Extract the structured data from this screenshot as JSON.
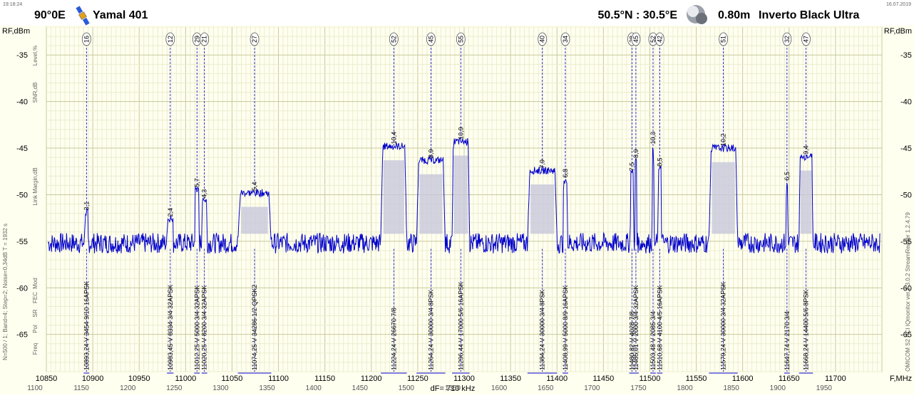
{
  "header": {
    "time": "19:18:24",
    "date": "16.07.2019",
    "orbit": "90°0E",
    "satellite": "Yamal 401",
    "location": "50.5°N : 30.5°E",
    "dish": "0.80m",
    "lnb": "Inverto Black Ultra",
    "satellite_icon": "satellite-icon",
    "globe_icon": "globe-icon"
  },
  "axes": {
    "left_unit": "RF,dBm",
    "right_unit": "RF,dBm",
    "x_unit": "F,MHz",
    "df_label": "dF= 710 kHz",
    "left_side_labels": [
      "Level,%",
      "SNR,dB",
      "Link Margin,dB",
      "Mod",
      "FEC",
      "SR",
      "Pol",
      "Freq"
    ],
    "left_status": "N=500 / 1; Band=4; Step=2; Noise=0,34dB  T = 1932 s",
    "right_status": "OMICOM S2 PCI  IQmonitor ver.2.3.0.2  StreamReader 1.2.4.79",
    "colors": {
      "trace": "#0000cc",
      "fill": "#c8c8dc",
      "grid": "#d8d8b0",
      "background": "#fffff0"
    }
  },
  "chart_data": {
    "type": "line",
    "xlim": [
      10850,
      11750
    ],
    "ylim": [
      -69,
      -32
    ],
    "grid": true,
    "x_ticks": [
      10850,
      10900,
      10950,
      11000,
      11050,
      11100,
      11150,
      11200,
      11250,
      11300,
      11350,
      11400,
      11450,
      11500,
      11550,
      11600,
      11650,
      11700
    ],
    "x_tick_labels": [
      "10850",
      "10900",
      "10950",
      "11000",
      "11050",
      "11100",
      "11150",
      "11200",
      "11250",
      "11300",
      "11350",
      "11400",
      "11450",
      "11500",
      "11550",
      "11600",
      "11650",
      "11700"
    ],
    "if_tick_labels": [
      "1100",
      "1150",
      "1200",
      "1250",
      "1300",
      "1350",
      "1400",
      "1450",
      "1500",
      "1550",
      "1600",
      "1650",
      "1700",
      "1750",
      "1800",
      "1850",
      "1900",
      "1950"
    ],
    "y_ticks": [
      -35,
      -40,
      -45,
      -50,
      -55,
      -60,
      -65
    ],
    "y_tick_labels": [
      "-35",
      "-40",
      "-45",
      "-50",
      "-55",
      "-60",
      "-65"
    ],
    "noise_floor": -55.2,
    "carriers": [
      {
        "num": "16",
        "freq": 10893.24,
        "level": -51.9,
        "snr": "3,1",
        "bw": 4,
        "tp": "10893,24  V  3454 9/10 16APSK"
      },
      {
        "num": "12",
        "freq": 10983.45,
        "level": -52.6,
        "snr": "2,4",
        "bw": 7,
        "tp": "10983,45  V  8334 3/4 32APSK"
      },
      {
        "num": "29",
        "freq": 11012.25,
        "level": -49.4,
        "snr": "5,7",
        "bw": 5,
        "tp": "11012,25  V  5000 3/4 32APSK"
      },
      {
        "num": "21",
        "freq": 11020.25,
        "level": -50.6,
        "snr": "4,3",
        "bw": 6,
        "tp": "11020,25  V  8200 3/4 32APSK"
      },
      {
        "num": "27",
        "freq": 11074.25,
        "level": -49.8,
        "snr": "5,4",
        "bw": 36,
        "tp": "11074,25  V  34286 1/2  QPSK2"
      },
      {
        "num": "52",
        "freq": 11224.24,
        "level": -44.8,
        "snr": "10,4",
        "bw": 28,
        "tp": "11224,24  V  26670 7/8"
      },
      {
        "num": "45",
        "freq": 11264.24,
        "level": -46.3,
        "snr": "8,9",
        "bw": 31,
        "tp": "11264,24  V  30000 3/4  8PSK"
      },
      {
        "num": "55",
        "freq": 11296.44,
        "level": -44.3,
        "snr": "10,9",
        "bw": 19,
        "tp": "11296,44  V  17000 5/6 16APSK"
      },
      {
        "num": "40",
        "freq": 11384.24,
        "level": -47.4,
        "snr": "7,9",
        "bw": 32,
        "tp": "11384,24  V  30000 3/4  8PSK"
      },
      {
        "num": "34",
        "freq": 11408.99,
        "level": -48.4,
        "snr": "6,8",
        "bw": 5,
        "tp": "11408,99  V  5000 8/9 16APSK"
      },
      {
        "num": "38",
        "freq": 11480.82,
        "level": -47.7,
        "snr": "7,5",
        "bw": 4,
        "tp": "11480,82  V  4028 7/8"
      },
      {
        "num": "45",
        "freq": 11485.01,
        "level": -46.3,
        "snr": "8,9",
        "bw": 2,
        "tp": "11485,01  V  2000 3/4 32APSK"
      },
      {
        "num": "52",
        "freq": 11503.48,
        "level": -44.8,
        "snr": "10,3",
        "bw": 2,
        "tp": "11503,48  V  2085 3/4"
      },
      {
        "num": "42",
        "freq": 11510.68,
        "level": -47.2,
        "snr": "8,5",
        "bw": 4,
        "tp": "11510,68  V  4100 4/5 16APSK"
      },
      {
        "num": "51",
        "freq": 11579.24,
        "level": -45.0,
        "snr": "10,2",
        "bw": 31,
        "tp": "11579,24  V  30000 3/4 32APSK"
      },
      {
        "num": "32",
        "freq": 11647.74,
        "level": -48.7,
        "snr": "6,5",
        "bw": 2,
        "tp": "11647,74  V  2170 3/4"
      },
      {
        "num": "47",
        "freq": 11668.24,
        "level": -45.9,
        "snr": "9,4",
        "bw": 15,
        "tp": "11668,24  V  14400 5/6  8PSK"
      }
    ]
  }
}
